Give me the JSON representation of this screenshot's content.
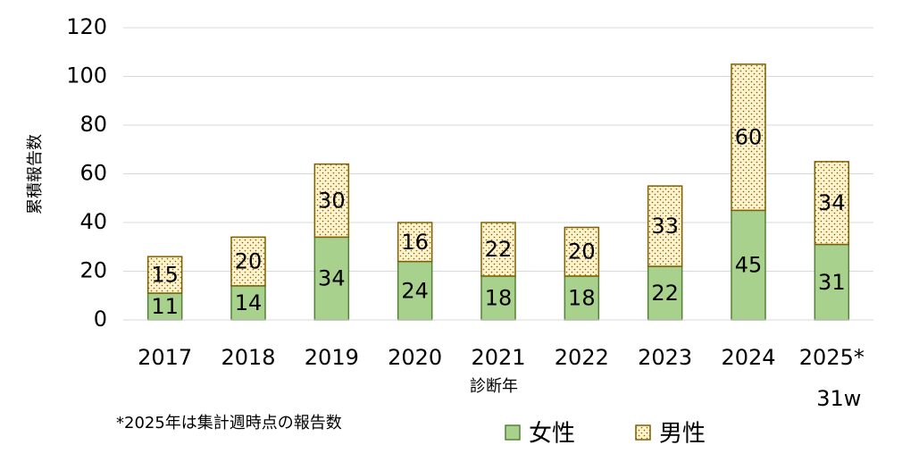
{
  "chart_data": {
    "type": "stacked_bar",
    "categories": [
      "2017",
      "2018",
      "2019",
      "2020",
      "2021",
      "2022",
      "2023",
      "2024",
      "2025*"
    ],
    "category_note": "31w",
    "series": [
      {
        "name": "女性",
        "color": "#a9d18e",
        "edge": "#548235",
        "values": [
          11,
          14,
          34,
          24,
          18,
          18,
          22,
          45,
          31
        ]
      },
      {
        "name": "男性",
        "color": "#fff2cc",
        "edge": "#7f6000",
        "values": [
          15,
          20,
          30,
          16,
          22,
          20,
          33,
          60,
          34
        ]
      }
    ],
    "ylim": [
      0,
      120
    ],
    "yticks": [
      0,
      20,
      40,
      60,
      80,
      100,
      120
    ],
    "grid": true,
    "y_label": "累積報告数",
    "x_label": "診断年",
    "note": "*2025年は集計週時点の報告数"
  }
}
